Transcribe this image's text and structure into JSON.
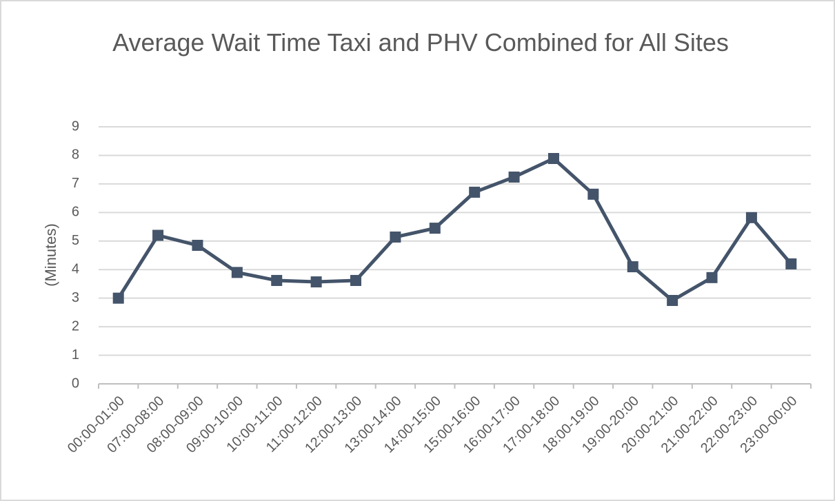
{
  "chart_data": {
    "type": "line",
    "title": "Average Wait Time Taxi and PHV Combined for All Sites",
    "y_label": "(Minutes)",
    "categories": [
      "00:00-01:00",
      "07:00-08:00",
      "08:00-09:00",
      "09:00-10:00",
      "10:00-11:00",
      "11:00-12:00",
      "12:00-13:00",
      "13:00-14:00",
      "14:00-15:00",
      "15:00-16:00",
      "16:00-17:00",
      "17:00-18:00",
      "18:00-19:00",
      "19:00-20:00",
      "20:00-21:00",
      "21:00-22:00",
      "22:00-23:00",
      "23:00-00:00"
    ],
    "values": [
      3.0,
      5.2,
      4.85,
      3.9,
      3.62,
      3.57,
      3.62,
      5.14,
      5.45,
      6.71,
      7.24,
      7.89,
      6.64,
      4.1,
      2.92,
      3.72,
      5.82,
      4.2
    ],
    "color": "#44546a",
    "ylim": [
      0,
      9
    ],
    "yticks": [
      0,
      1,
      2,
      3,
      4,
      5,
      6,
      7,
      8,
      9
    ],
    "grid": true
  }
}
